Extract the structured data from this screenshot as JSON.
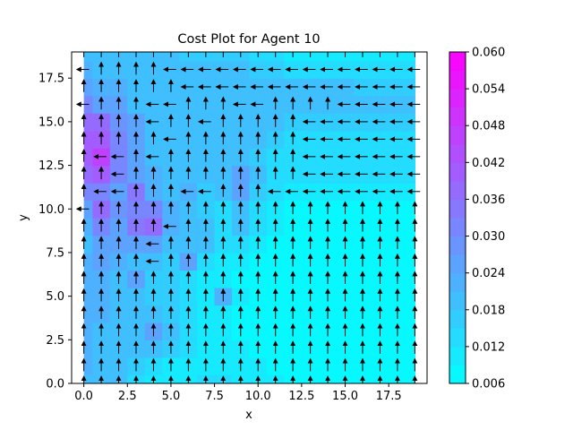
{
  "chart_data": {
    "type": "heatmap",
    "subtype": "filled-contour with quiver arrows",
    "title": "Cost Plot for Agent 10",
    "xlabel": "x",
    "ylabel": "y",
    "xlim": [
      -0.7,
      19.7
    ],
    "ylim": [
      0,
      19
    ],
    "grid": false,
    "x_ticks": [
      0.0,
      2.5,
      5.0,
      7.5,
      10.0,
      12.5,
      15.0,
      17.5
    ],
    "x_tick_labels": [
      "0.0",
      "2.5",
      "5.0",
      "7.5",
      "10.0",
      "12.5",
      "15.0",
      "17.5"
    ],
    "y_ticks": [
      0.0,
      2.5,
      5.0,
      7.5,
      10.0,
      12.5,
      15.0,
      17.5
    ],
    "y_tick_labels": [
      "0.0",
      "2.5",
      "5.0",
      "7.5",
      "10.0",
      "12.5",
      "15.0",
      "17.5"
    ],
    "colormap": "cool",
    "colorbar": {
      "min": 0.006,
      "max": 0.06,
      "levels": [
        0.006,
        0.009,
        0.012,
        0.015,
        0.018,
        0.021,
        0.024,
        0.027,
        0.03,
        0.033,
        0.036,
        0.039,
        0.042,
        0.045,
        0.048,
        0.051,
        0.054,
        0.057,
        0.06
      ],
      "tick_values": [
        0.006,
        0.012,
        0.018,
        0.024,
        0.03,
        0.036,
        0.042,
        0.048,
        0.054,
        0.06
      ],
      "tick_labels": [
        "0.006",
        "0.012",
        "0.018",
        "0.024",
        "0.030",
        "0.036",
        "0.042",
        "0.048",
        "0.054",
        "0.060"
      ]
    },
    "grid_x": [
      0,
      19
    ],
    "grid_y": [
      0,
      19
    ],
    "cost_grid": [
      [
        0.02,
        0.02,
        0.018,
        0.012,
        0.01,
        0.01,
        0.01,
        0.012,
        0.012,
        0.01,
        0.01,
        0.01,
        0.008,
        0.008,
        0.008,
        0.008,
        0.008,
        0.008,
        0.008,
        0.008
      ],
      [
        0.022,
        0.02,
        0.018,
        0.015,
        0.012,
        0.01,
        0.01,
        0.01,
        0.01,
        0.01,
        0.01,
        0.008,
        0.008,
        0.008,
        0.008,
        0.008,
        0.008,
        0.008,
        0.008,
        0.008
      ],
      [
        0.022,
        0.02,
        0.02,
        0.018,
        0.02,
        0.015,
        0.012,
        0.01,
        0.01,
        0.01,
        0.008,
        0.008,
        0.008,
        0.008,
        0.008,
        0.008,
        0.008,
        0.008,
        0.008,
        0.008
      ],
      [
        0.022,
        0.02,
        0.02,
        0.018,
        0.026,
        0.018,
        0.012,
        0.01,
        0.01,
        0.008,
        0.008,
        0.008,
        0.008,
        0.008,
        0.008,
        0.008,
        0.008,
        0.008,
        0.008,
        0.008
      ],
      [
        0.022,
        0.022,
        0.02,
        0.02,
        0.018,
        0.015,
        0.012,
        0.01,
        0.01,
        0.008,
        0.008,
        0.008,
        0.008,
        0.008,
        0.008,
        0.008,
        0.008,
        0.008,
        0.008,
        0.008
      ],
      [
        0.022,
        0.022,
        0.02,
        0.02,
        0.016,
        0.015,
        0.012,
        0.01,
        0.022,
        0.01,
        0.008,
        0.008,
        0.008,
        0.008,
        0.008,
        0.008,
        0.008,
        0.008,
        0.008,
        0.008
      ],
      [
        0.022,
        0.022,
        0.02,
        0.024,
        0.016,
        0.015,
        0.012,
        0.01,
        0.01,
        0.008,
        0.008,
        0.008,
        0.008,
        0.008,
        0.008,
        0.008,
        0.008,
        0.008,
        0.008,
        0.008
      ],
      [
        0.022,
        0.024,
        0.022,
        0.02,
        0.018,
        0.016,
        0.026,
        0.014,
        0.01,
        0.01,
        0.008,
        0.008,
        0.008,
        0.008,
        0.008,
        0.008,
        0.008,
        0.008,
        0.008,
        0.008
      ],
      [
        0.02,
        0.024,
        0.024,
        0.026,
        0.024,
        0.02,
        0.018,
        0.018,
        0.014,
        0.012,
        0.01,
        0.008,
        0.008,
        0.008,
        0.008,
        0.008,
        0.008,
        0.008,
        0.008,
        0.008
      ],
      [
        0.022,
        0.03,
        0.026,
        0.034,
        0.036,
        0.022,
        0.02,
        0.018,
        0.014,
        0.02,
        0.012,
        0.01,
        0.008,
        0.008,
        0.008,
        0.008,
        0.008,
        0.008,
        0.008,
        0.008
      ],
      [
        0.024,
        0.036,
        0.028,
        0.032,
        0.03,
        0.022,
        0.018,
        0.016,
        0.014,
        0.018,
        0.014,
        0.01,
        0.008,
        0.008,
        0.008,
        0.008,
        0.008,
        0.008,
        0.008,
        0.008
      ],
      [
        0.03,
        0.032,
        0.026,
        0.034,
        0.022,
        0.02,
        0.022,
        0.016,
        0.018,
        0.026,
        0.016,
        0.012,
        0.01,
        0.01,
        0.01,
        0.01,
        0.01,
        0.01,
        0.01,
        0.01
      ],
      [
        0.038,
        0.04,
        0.03,
        0.026,
        0.022,
        0.02,
        0.018,
        0.018,
        0.018,
        0.024,
        0.018,
        0.014,
        0.012,
        0.012,
        0.012,
        0.012,
        0.012,
        0.012,
        0.012,
        0.012
      ],
      [
        0.04,
        0.046,
        0.032,
        0.024,
        0.02,
        0.018,
        0.018,
        0.018,
        0.018,
        0.018,
        0.016,
        0.014,
        0.012,
        0.012,
        0.012,
        0.012,
        0.012,
        0.012,
        0.012,
        0.012
      ],
      [
        0.04,
        0.04,
        0.03,
        0.026,
        0.02,
        0.018,
        0.018,
        0.018,
        0.018,
        0.018,
        0.018,
        0.016,
        0.014,
        0.014,
        0.014,
        0.014,
        0.014,
        0.014,
        0.014,
        0.014
      ],
      [
        0.036,
        0.036,
        0.028,
        0.024,
        0.02,
        0.018,
        0.018,
        0.018,
        0.018,
        0.018,
        0.018,
        0.018,
        0.016,
        0.016,
        0.016,
        0.016,
        0.016,
        0.016,
        0.016,
        0.016
      ],
      [
        0.03,
        0.024,
        0.024,
        0.02,
        0.02,
        0.018,
        0.018,
        0.018,
        0.018,
        0.018,
        0.018,
        0.018,
        0.018,
        0.018,
        0.018,
        0.018,
        0.018,
        0.018,
        0.018,
        0.018
      ],
      [
        0.024,
        0.022,
        0.022,
        0.02,
        0.018,
        0.018,
        0.018,
        0.018,
        0.018,
        0.018,
        0.018,
        0.018,
        0.018,
        0.018,
        0.018,
        0.018,
        0.016,
        0.016,
        0.016,
        0.016
      ],
      [
        0.022,
        0.02,
        0.02,
        0.02,
        0.018,
        0.018,
        0.018,
        0.018,
        0.018,
        0.018,
        0.016,
        0.016,
        0.014,
        0.014,
        0.014,
        0.012,
        0.012,
        0.012,
        0.012,
        0.012
      ],
      [
        0.02,
        0.018,
        0.018,
        0.018,
        0.018,
        0.018,
        0.016,
        0.016,
        0.016,
        0.016,
        0.014,
        0.012,
        0.01,
        0.01,
        0.01,
        0.01,
        0.01,
        0.01,
        0.01,
        0.01
      ]
    ],
    "quiver": {
      "description": "action arrows at integer grid points; U = up, L = left",
      "rows_y_ascending": [
        "UUUUUUUUUUUUUUUUUUUU",
        "UUUUUUUUUUUUUUUUUUUU",
        "UUUUUUUUUUUUUUUUUUUU",
        "UUUUUUUUUUUUUUUUUUUU",
        "UUUUUUUUUUUUUUUUUUUU",
        "UUUUUUUUUUUUUUUUUUUU",
        "UUUUUUUUUUUUUUUUUUUU",
        "UUUULUUUUUUUUUUUUUUU",
        "UUUULUUUUUUUUUUUUUUU",
        "UUUUULUUUUUUUUUUUUUU",
        "LUUUUUUUUUUUUUUUUUUU",
        "ULLUUULLUUULLLLLLLLL",
        "UULUUUUUUUUUULLLLLLL",
        "ULLULUUUUUUUULLLLLLL",
        "UUUUULUUUUUUULLLLLLL",
        "UUUULUULUUUUULLLLLLL",
        "LUUULLUUULLUUUULLLLL",
        "UUUUUULLLLLLLLLLLLLL",
        "LUUUULLLLLLLLLLLLLLL",
        "UUUUUUUUUUUUUUUUUUUU"
      ]
    }
  }
}
